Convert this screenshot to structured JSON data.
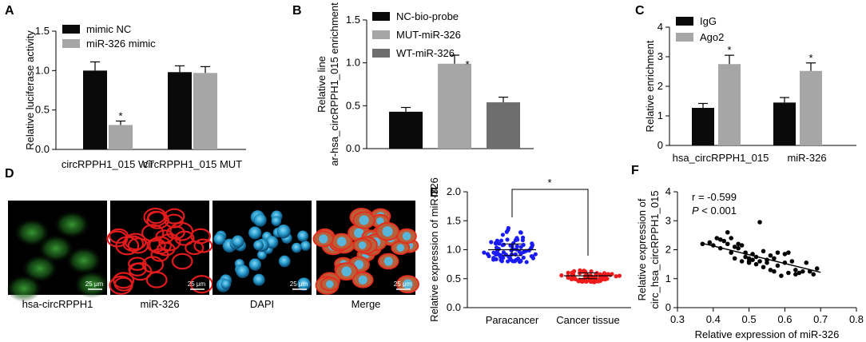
{
  "panels": {
    "A": {
      "label": "A"
    },
    "B": {
      "label": "B"
    },
    "C": {
      "label": "C"
    },
    "D": {
      "label": "D",
      "scale_text": "25 μm",
      "captions": [
        "hsa-circRPPH1",
        "miR-326",
        "DAPI",
        "Merge"
      ]
    },
    "E": {
      "label": "E"
    },
    "F": {
      "label": "F",
      "r_text": "r = -0.599",
      "p_italic": "P",
      "p_rest": " < 0.001"
    }
  },
  "chart_data": [
    {
      "id": "A",
      "type": "bar",
      "ylabel": "Relative luciferase activity",
      "xlabel": "",
      "ylim": [
        0,
        1.5
      ],
      "yticks": [
        "0.0",
        "0.5",
        "1.0",
        "1.5"
      ],
      "categories": [
        "circRPPH1_015 WT",
        "circRPPH1_015 MUT"
      ],
      "series": [
        {
          "name": "mimic NC",
          "color": "#0a0a0a",
          "values": [
            1.0,
            0.98
          ],
          "err": [
            0.11,
            0.08
          ]
        },
        {
          "name": "miR-326 mimic",
          "color": "#a6a6a6",
          "values": [
            0.31,
            0.97
          ],
          "err": [
            0.05,
            0.08
          ]
        }
      ],
      "sig": [
        "*",
        ""
      ],
      "sig_series": 1,
      "legend": "top-left"
    },
    {
      "id": "B",
      "type": "bar",
      "ylabel_lines": [
        "Relative line",
        "ar-hsa_circRPPH1_015 enrichment"
      ],
      "xlabel": "",
      "ylim": [
        0,
        1.5
      ],
      "yticks": [
        "0.0",
        "0.5",
        "1.0",
        "1.5"
      ],
      "categories": [
        "NC-bio-probe",
        "MUT-miR-326",
        "WT-miR-326"
      ],
      "colors": [
        "#0a0a0a",
        "#a6a6a6",
        "#6e6e6e"
      ],
      "values": [
        0.43,
        0.99,
        0.54
      ],
      "err": [
        0.05,
        0.1,
        0.06
      ],
      "sig": [
        "",
        "*",
        ""
      ],
      "legend": "top-right"
    },
    {
      "id": "C",
      "type": "bar",
      "ylabel": "Relative enrichment",
      "xlabel": "",
      "ylim": [
        0,
        4
      ],
      "yticks": [
        "0",
        "1",
        "2",
        "3",
        "4"
      ],
      "categories": [
        "hsa_circRPPH1_015",
        "miR-326"
      ],
      "series": [
        {
          "name": "IgG",
          "color": "#0a0a0a",
          "values": [
            1.27,
            1.45
          ],
          "err": [
            0.15,
            0.17
          ]
        },
        {
          "name": "Ago2",
          "color": "#a6a6a6",
          "values": [
            2.75,
            2.52
          ],
          "err": [
            0.3,
            0.27
          ]
        }
      ],
      "sig": [
        "*",
        "*"
      ],
      "sig_series": 1,
      "legend": "top-left"
    },
    {
      "id": "E",
      "type": "scatter",
      "ylabel": "Relative expression of miR-326",
      "xlabel": "",
      "ylim": [
        0,
        2.0
      ],
      "yticks": [
        "0.0",
        "0.5",
        "1.0",
        "1.5",
        "2.0"
      ],
      "categories": [
        "Paracancer",
        "Cancer tissue"
      ],
      "groups": [
        {
          "name": "Paracancer",
          "color": "#1b1bf5",
          "mean": 1.0,
          "sd": 0.1,
          "spread_lo": 0.78,
          "spread_hi": 1.43,
          "n": 80
        },
        {
          "name": "Cancer tissue",
          "color": "#ee1c1c",
          "mean": 0.55,
          "sd": 0.05,
          "spread_lo": 0.44,
          "spread_hi": 0.67,
          "n": 80
        }
      ],
      "sig": "*"
    },
    {
      "id": "F",
      "type": "scatter",
      "ylabel_lines": [
        "Relative expression of",
        "circ_hsa_circRPPH1_015"
      ],
      "xlabel": "Relative expression of miR-326",
      "xlim": [
        0.3,
        0.8
      ],
      "ylim": [
        0,
        4
      ],
      "xticks": [
        "0.3",
        "0.4",
        "0.5",
        "0.6",
        "0.7",
        "0.8"
      ],
      "yticks": [
        "0",
        "1",
        "2",
        "3",
        "4"
      ],
      "fit": {
        "x": [
          0.37,
          0.7
        ],
        "y": [
          2.22,
          1.22
        ]
      },
      "points": [
        [
          0.37,
          2.2
        ],
        [
          0.39,
          2.25
        ],
        [
          0.4,
          2.15
        ],
        [
          0.41,
          2.4
        ],
        [
          0.42,
          2.35
        ],
        [
          0.42,
          2.05
        ],
        [
          0.43,
          2.3
        ],
        [
          0.44,
          2.6
        ],
        [
          0.44,
          2.2
        ],
        [
          0.45,
          1.9
        ],
        [
          0.45,
          2.4
        ],
        [
          0.46,
          2.1
        ],
        [
          0.46,
          1.7
        ],
        [
          0.47,
          2.05
        ],
        [
          0.47,
          2.2
        ],
        [
          0.48,
          2.15
        ],
        [
          0.48,
          1.6
        ],
        [
          0.49,
          1.9
        ],
        [
          0.49,
          1.75
        ],
        [
          0.5,
          1.6
        ],
        [
          0.5,
          1.55
        ],
        [
          0.5,
          1.7
        ],
        [
          0.51,
          1.85
        ],
        [
          0.51,
          1.65
        ],
        [
          0.52,
          1.5
        ],
        [
          0.52,
          1.75
        ],
        [
          0.53,
          2.95
        ],
        [
          0.53,
          1.6
        ],
        [
          0.54,
          1.95
        ],
        [
          0.54,
          1.4
        ],
        [
          0.55,
          1.65
        ],
        [
          0.55,
          1.55
        ],
        [
          0.56,
          1.8
        ],
        [
          0.56,
          1.3
        ],
        [
          0.57,
          1.7
        ],
        [
          0.57,
          1.25
        ],
        [
          0.58,
          1.9
        ],
        [
          0.58,
          1.45
        ],
        [
          0.59,
          1.1
        ],
        [
          0.6,
          1.85
        ],
        [
          0.6,
          1.55
        ],
        [
          0.61,
          1.2
        ],
        [
          0.61,
          1.9
        ],
        [
          0.62,
          1.6
        ],
        [
          0.63,
          1.3
        ],
        [
          0.63,
          1.15
        ],
        [
          0.64,
          1.2
        ],
        [
          0.65,
          1.25
        ],
        [
          0.66,
          1.55
        ],
        [
          0.67,
          1.25
        ],
        [
          0.68,
          1.15
        ],
        [
          0.69,
          1.35
        ]
      ]
    }
  ]
}
